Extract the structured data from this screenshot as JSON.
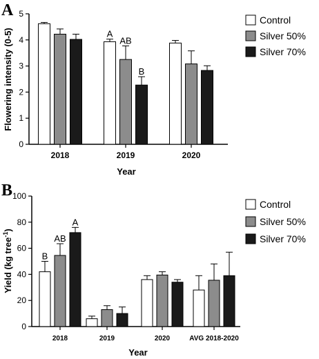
{
  "colors": {
    "control": "#ffffff",
    "silver50": "#8c8c8c",
    "silver70": "#1a1a1a",
    "stroke": "#000000"
  },
  "chart_data": [
    {
      "panel_label": "A",
      "type": "bar",
      "categories": [
        "2018",
        "2019",
        "2020"
      ],
      "xlabel": "Year",
      "ylabel": "Flowering intensity (0-5)",
      "ylim": [
        0,
        5
      ],
      "yticks": [
        0,
        1,
        2,
        3,
        4,
        5
      ],
      "series": [
        {
          "name": "Control",
          "color_key": "control",
          "values": [
            4.62,
            3.93,
            3.88
          ],
          "errors": [
            0.05,
            0.1,
            0.1
          ],
          "labels": [
            "",
            "A",
            ""
          ]
        },
        {
          "name": "Silver 50%",
          "color_key": "silver50",
          "values": [
            4.22,
            3.25,
            3.08
          ],
          "errors": [
            0.2,
            0.52,
            0.5
          ],
          "labels": [
            "",
            "AB",
            ""
          ]
        },
        {
          "name": "Silver 70%",
          "color_key": "silver70",
          "values": [
            4.02,
            2.27,
            2.83
          ],
          "errors": [
            0.2,
            0.32,
            0.18
          ],
          "labels": [
            "",
            "B",
            ""
          ]
        }
      ],
      "legend": {
        "placement": "right",
        "entries": [
          "Control",
          "Silver 50%",
          "Silver 70%"
        ]
      }
    },
    {
      "panel_label": "B",
      "type": "bar",
      "categories": [
        "2018",
        "2019",
        "2020",
        "AVG 2018-2020"
      ],
      "xlabel": "Year",
      "ylabel": "Yield (kg tree",
      "ylabel_sup": "-1",
      "ylabel_close": ")",
      "ylim": [
        0,
        100
      ],
      "yticks": [
        0,
        20,
        40,
        60,
        80,
        100
      ],
      "series": [
        {
          "name": "Control",
          "color_key": "control",
          "values": [
            42,
            6,
            36,
            28
          ],
          "errors": [
            8,
            2,
            3,
            11
          ],
          "labels": [
            "B",
            "",
            "",
            ""
          ]
        },
        {
          "name": "Silver 50%",
          "color_key": "silver50",
          "values": [
            54.5,
            13,
            39.5,
            35.5
          ],
          "errors": [
            9,
            3,
            2.5,
            12.5
          ],
          "labels": [
            "AB",
            "",
            "",
            ""
          ]
        },
        {
          "name": "Silver 70%",
          "color_key": "silver70",
          "values": [
            72,
            10,
            34,
            39
          ],
          "errors": [
            4,
            5,
            2,
            18
          ],
          "labels": [
            "A",
            "",
            "",
            ""
          ]
        }
      ],
      "legend": {
        "placement": "right",
        "entries": [
          "Control",
          "Silver 50%",
          "Silver 70%"
        ]
      }
    }
  ]
}
